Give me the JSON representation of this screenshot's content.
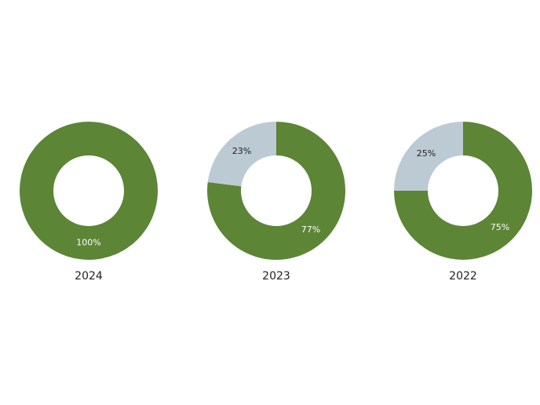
{
  "chart_data": [
    {
      "type": "donut",
      "title": "2024",
      "values": [
        100
      ],
      "value_labels": [
        "100%"
      ],
      "colors": [
        "#5c8536"
      ]
    },
    {
      "type": "donut",
      "title": "2023",
      "values": [
        77,
        23
      ],
      "value_labels": [
        "77%",
        "23%"
      ],
      "colors": [
        "#5c8536",
        "#bccad3"
      ]
    },
    {
      "type": "donut",
      "title": "2022",
      "values": [
        75,
        25
      ],
      "value_labels": [
        "75%",
        "25%"
      ],
      "colors": [
        "#5c8536",
        "#bccad3"
      ]
    }
  ]
}
